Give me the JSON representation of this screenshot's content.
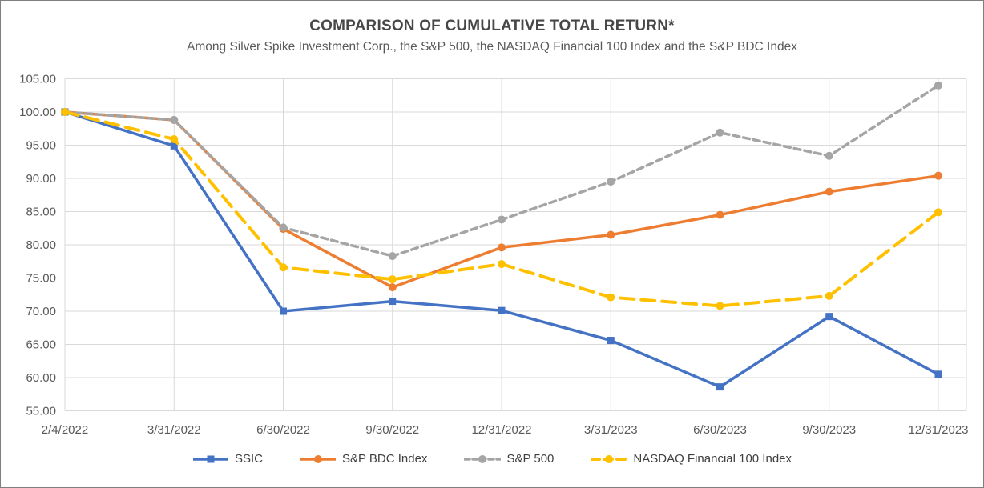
{
  "chart": {
    "title": "COMPARISON OF CUMULATIVE TOTAL RETURN*",
    "subtitle": "Among Silver Spike Investment Corp., the S&P 500, the NASDAQ Financial 100 Index and the S&P BDC Index"
  },
  "chart_data": {
    "type": "line",
    "title": "COMPARISON OF CUMULATIVE TOTAL RETURN*",
    "subtitle": "Among Silver Spike Investment Corp., the S&P 500, the NASDAQ Financial 100 Index and the S&P BDC Index",
    "categories": [
      "2/4/2022",
      "3/31/2022",
      "6/30/2022",
      "9/30/2022",
      "12/31/2022",
      "3/31/2023",
      "6/30/2023",
      "9/30/2023",
      "12/31/2023"
    ],
    "series": [
      {
        "name": "SSIC",
        "color": "#4472C4",
        "marker": "square",
        "dash": "solid",
        "values": [
          100.0,
          94.9,
          70.0,
          71.5,
          70.1,
          65.6,
          58.6,
          69.2,
          60.5
        ]
      },
      {
        "name": "S&P BDC Index",
        "color": "#ED7D31",
        "marker": "circle",
        "dash": "solid",
        "values": [
          100.0,
          98.8,
          82.4,
          73.6,
          79.6,
          81.5,
          84.5,
          88.0,
          90.4
        ]
      },
      {
        "name": "S&P 500",
        "color": "#A5A5A5",
        "marker": "circle",
        "dash": "dashed",
        "values": [
          100.0,
          98.8,
          82.6,
          78.3,
          83.8,
          89.5,
          96.9,
          93.4,
          104.0
        ]
      },
      {
        "name": "NASDAQ Financial 100 Index",
        "color": "#FFC000",
        "marker": "circle",
        "dash": "long-dash",
        "values": [
          100.0,
          95.9,
          76.6,
          74.8,
          77.1,
          72.1,
          70.8,
          72.3,
          84.9
        ]
      }
    ],
    "ylim": [
      55,
      105
    ],
    "ytick_step": 5,
    "ytick_labels": [
      "55.00",
      "60.00",
      "65.00",
      "70.00",
      "75.00",
      "80.00",
      "85.00",
      "90.00",
      "95.00",
      "100.00",
      "105.00"
    ],
    "grid": true,
    "legend_position": "bottom"
  },
  "colors": {
    "background": "#FFFFFF",
    "border": "#7F7F7F",
    "gridline": "#D9D9D9",
    "axis_text": "#595959",
    "title_text": "#474747",
    "legend_text": "#3F3F3F"
  }
}
